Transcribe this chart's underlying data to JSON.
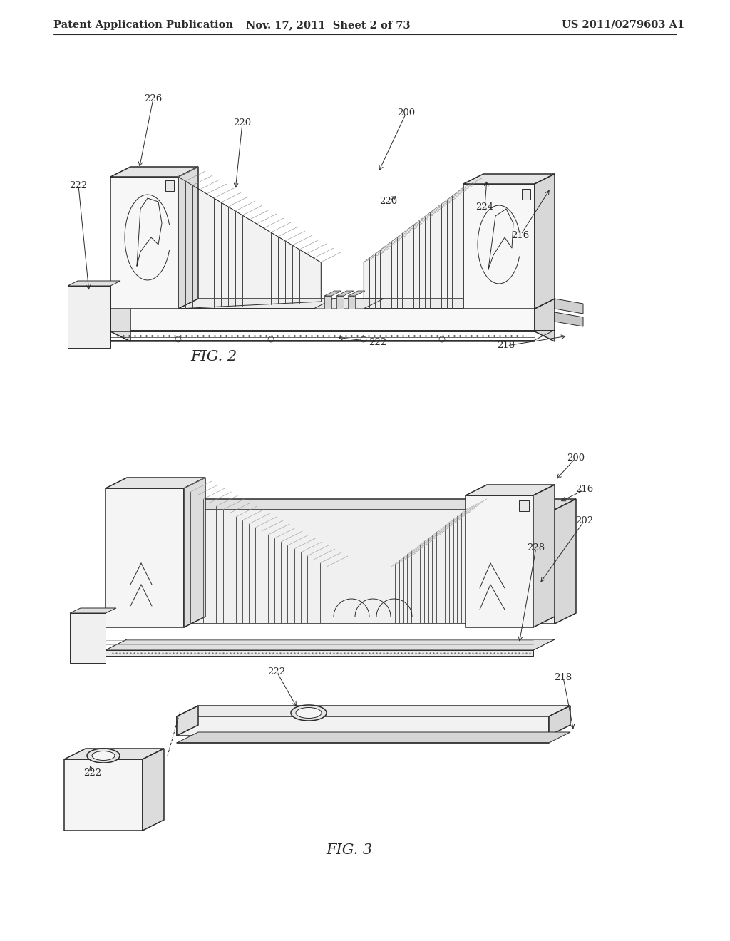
{
  "background_color": "#ffffff",
  "header_left": "Patent Application Publication",
  "header_center": "Nov. 17, 2011  Sheet 2 of 73",
  "header_right": "US 2011/0279603 A1",
  "fig2_label": "FIG. 2",
  "fig3_label": "FIG. 3",
  "line_color": "#2a2a2a",
  "ref_fontsize": 9.5,
  "fig_label_fontsize": 15,
  "header_fontsize": 10.5
}
